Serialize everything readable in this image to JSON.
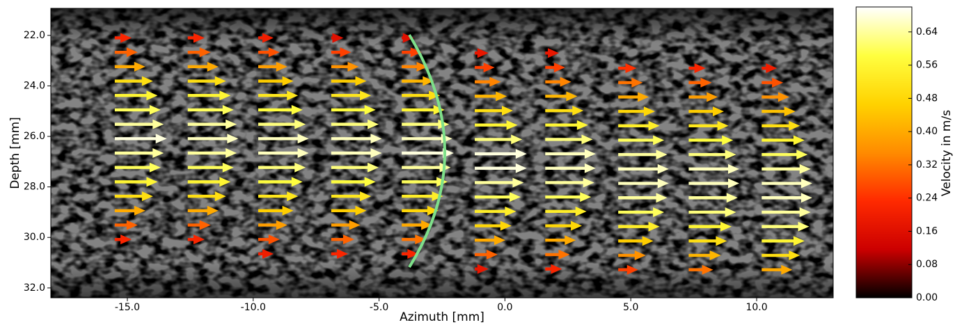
{
  "chart_data": {
    "type": "quiver",
    "x_label": "Azimuth [mm]",
    "y_label": "Depth [mm]",
    "colorbar_label": "Velocity in m/s",
    "xlim": [
      -18.04,
      13.04
    ],
    "ylim": [
      20.93,
      32.39
    ],
    "xticks": [
      {
        "value": -15,
        "label": "-15.0"
      },
      {
        "value": -10,
        "label": "-10.0"
      },
      {
        "value": -5,
        "label": "-5.0"
      },
      {
        "value": 0,
        "label": "0.0"
      },
      {
        "value": 5,
        "label": "5.0"
      },
      {
        "value": 10,
        "label": "10.0"
      }
    ],
    "yticks": [
      {
        "value": 22,
        "label": "22.0"
      },
      {
        "value": 24,
        "label": "24.0"
      },
      {
        "value": 26,
        "label": "26.0"
      },
      {
        "value": 28,
        "label": "28.0"
      },
      {
        "value": 30,
        "label": "30.0"
      },
      {
        "value": 32,
        "label": "32.0"
      }
    ],
    "clim": [
      0,
      0.7
    ],
    "cticks": [
      {
        "value": 0,
        "label": "0.00"
      },
      {
        "value": 0.08,
        "label": "0.08"
      },
      {
        "value": 0.16,
        "label": "0.16"
      },
      {
        "value": 0.24,
        "label": "0.24"
      },
      {
        "value": 0.32,
        "label": "0.32"
      },
      {
        "value": 0.4,
        "label": "0.40"
      },
      {
        "value": 0.48,
        "label": "0.48"
      },
      {
        "value": 0.56,
        "label": "0.56"
      },
      {
        "value": 0.64,
        "label": "0.64"
      }
    ],
    "colormap": [
      "#000000",
      "#cc0000",
      "#ff2a00",
      "#ff8c00",
      "#ffd200",
      "#ffff40",
      "#ffffff"
    ],
    "columns": [
      {
        "x": -15.5,
        "y": [
          22.1,
          22.67,
          23.24,
          23.81,
          24.38,
          24.95,
          25.52,
          26.09,
          26.66,
          27.23,
          27.8,
          28.37,
          28.94,
          29.51,
          30.08
        ],
        "values": [
          0.22,
          0.3,
          0.4,
          0.5,
          0.56,
          0.6,
          0.64,
          0.68,
          0.64,
          0.6,
          0.56,
          0.5,
          0.4,
          0.3,
          0.22
        ]
      },
      {
        "x": -12.6,
        "y": [
          22.1,
          22.67,
          23.24,
          23.81,
          24.38,
          24.95,
          25.52,
          26.09,
          26.66,
          27.23,
          27.8,
          28.37,
          28.94,
          29.51,
          30.08
        ],
        "values": [
          0.22,
          0.3,
          0.4,
          0.5,
          0.56,
          0.6,
          0.64,
          0.66,
          0.64,
          0.6,
          0.56,
          0.5,
          0.4,
          0.3,
          0.22
        ]
      },
      {
        "x": -9.8,
        "y": [
          22.1,
          22.67,
          23.24,
          23.81,
          24.38,
          24.95,
          25.52,
          26.09,
          26.66,
          27.23,
          27.8,
          28.37,
          28.94,
          29.51,
          30.08,
          30.65
        ],
        "values": [
          0.2,
          0.28,
          0.38,
          0.46,
          0.52,
          0.58,
          0.62,
          0.66,
          0.66,
          0.62,
          0.58,
          0.52,
          0.46,
          0.38,
          0.28,
          0.2
        ]
      },
      {
        "x": -6.9,
        "y": [
          22.1,
          22.67,
          23.24,
          23.81,
          24.38,
          24.95,
          25.52,
          26.09,
          26.66,
          27.23,
          27.8,
          28.37,
          28.94,
          29.51,
          30.08,
          30.65
        ],
        "values": [
          0.16,
          0.26,
          0.36,
          0.46,
          0.52,
          0.58,
          0.62,
          0.66,
          0.66,
          0.62,
          0.58,
          0.52,
          0.46,
          0.38,
          0.3,
          0.22
        ]
      },
      {
        "x": -4.1,
        "y": [
          22.1,
          22.67,
          23.24,
          23.81,
          24.38,
          24.95,
          25.52,
          26.09,
          26.66,
          27.23,
          27.8,
          28.37,
          28.94,
          29.51,
          30.08,
          30.65
        ],
        "values": [
          0.16,
          0.26,
          0.34,
          0.42,
          0.5,
          0.56,
          0.62,
          0.66,
          0.68,
          0.64,
          0.6,
          0.54,
          0.48,
          0.4,
          0.32,
          0.22
        ]
      },
      {
        "x": -1.2,
        "y": [
          22.7,
          23.27,
          23.84,
          24.41,
          24.98,
          25.55,
          26.12,
          26.69,
          27.26,
          27.83,
          28.4,
          28.97,
          29.54,
          30.11,
          30.68,
          31.25
        ],
        "values": [
          0.18,
          0.26,
          0.34,
          0.42,
          0.5,
          0.56,
          0.62,
          0.68,
          0.68,
          0.64,
          0.6,
          0.54,
          0.48,
          0.4,
          0.3,
          0.18
        ]
      },
      {
        "x": 1.6,
        "y": [
          22.7,
          23.27,
          23.84,
          24.41,
          24.98,
          25.55,
          26.12,
          26.69,
          27.26,
          27.83,
          28.4,
          28.97,
          29.54,
          30.11,
          30.68,
          31.25
        ],
        "values": [
          0.18,
          0.26,
          0.34,
          0.42,
          0.5,
          0.56,
          0.62,
          0.66,
          0.66,
          0.64,
          0.6,
          0.54,
          0.48,
          0.4,
          0.32,
          0.22
        ]
      },
      {
        "x": 4.5,
        "y": [
          23.3,
          23.87,
          24.44,
          25.01,
          25.58,
          26.15,
          26.72,
          27.29,
          27.86,
          28.43,
          29.0,
          29.57,
          30.14,
          30.71,
          31.28
        ],
        "values": [
          0.24,
          0.32,
          0.4,
          0.48,
          0.54,
          0.6,
          0.64,
          0.66,
          0.66,
          0.64,
          0.6,
          0.54,
          0.46,
          0.36,
          0.26
        ]
      },
      {
        "x": 7.3,
        "y": [
          23.3,
          23.87,
          24.44,
          25.01,
          25.58,
          26.15,
          26.72,
          27.29,
          27.86,
          28.43,
          29.0,
          29.57,
          30.14,
          30.71,
          31.28
        ],
        "values": [
          0.22,
          0.3,
          0.38,
          0.46,
          0.52,
          0.58,
          0.62,
          0.66,
          0.66,
          0.64,
          0.62,
          0.56,
          0.5,
          0.42,
          0.32
        ]
      },
      {
        "x": 10.2,
        "y": [
          23.3,
          23.87,
          24.44,
          25.01,
          25.58,
          26.15,
          26.72,
          27.29,
          27.86,
          28.43,
          29.0,
          29.57,
          30.14,
          30.71,
          31.28
        ],
        "values": [
          0.2,
          0.28,
          0.36,
          0.44,
          0.5,
          0.56,
          0.6,
          0.64,
          0.66,
          0.66,
          0.64,
          0.62,
          0.56,
          0.5,
          0.4
        ]
      }
    ]
  }
}
